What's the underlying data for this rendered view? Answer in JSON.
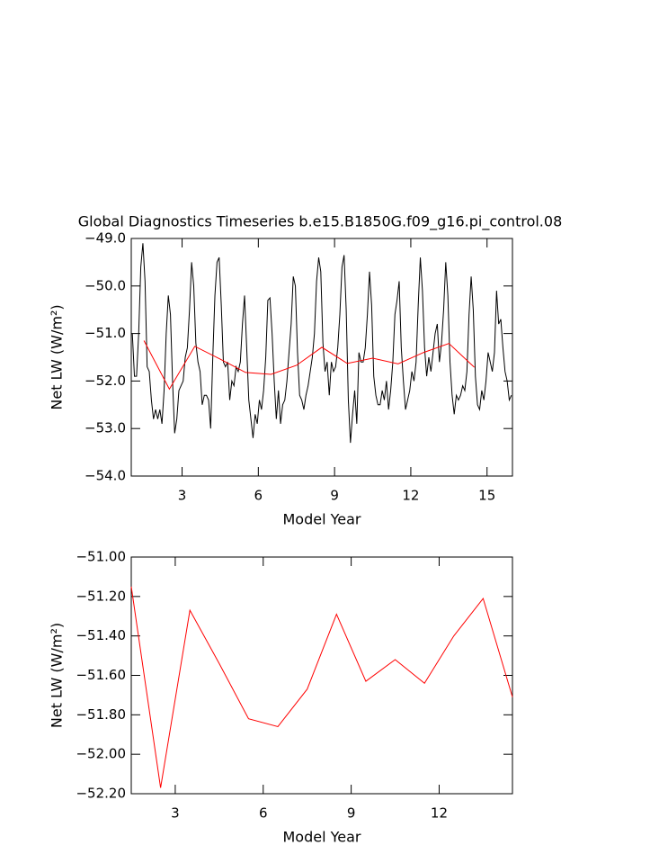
{
  "chart_data": [
    {
      "type": "line",
      "title": "Global Diagnostics Timeseries b.e15.B1850G.f09_g16.pi_control.08",
      "x_label": "Model Year",
      "y_label": "Net LW (W/m²)",
      "xlim": [
        1,
        16
      ],
      "xticks": [
        3,
        6,
        9,
        12,
        15
      ],
      "ylim": [
        -54,
        -49
      ],
      "yticks": [
        {
          "value": -54,
          "label": "−54.0"
        },
        {
          "value": -53,
          "label": "−53.0"
        },
        {
          "value": -52,
          "label": "−52.0"
        },
        {
          "value": -51,
          "label": "−51.0"
        },
        {
          "value": -50,
          "label": "−50.0"
        },
        {
          "value": -49,
          "label": "−49.0"
        }
      ],
      "series": [
        {
          "color": "#000000",
          "x": [
            1.042,
            1.125,
            1.208,
            1.292,
            1.375,
            1.458,
            1.542,
            1.625,
            1.708,
            1.792,
            1.875,
            1.958,
            2.042,
            2.125,
            2.208,
            2.292,
            2.375,
            2.458,
            2.542,
            2.625,
            2.708,
            2.792,
            2.875,
            2.958,
            3.042,
            3.125,
            3.208,
            3.292,
            3.375,
            3.458,
            3.542,
            3.625,
            3.708,
            3.792,
            3.875,
            3.958,
            4.042,
            4.125,
            4.208,
            4.292,
            4.375,
            4.458,
            4.542,
            4.625,
            4.708,
            4.792,
            4.875,
            4.958,
            5.042,
            5.125,
            5.208,
            5.292,
            5.375,
            5.458,
            5.542,
            5.625,
            5.708,
            5.792,
            5.875,
            5.958,
            6.042,
            6.125,
            6.208,
            6.292,
            6.375,
            6.458,
            6.542,
            6.625,
            6.708,
            6.792,
            6.875,
            6.958,
            7.042,
            7.125,
            7.208,
            7.292,
            7.375,
            7.458,
            7.542,
            7.625,
            7.708,
            7.792,
            7.875,
            7.958,
            8.042,
            8.125,
            8.208,
            8.292,
            8.375,
            8.458,
            8.542,
            8.625,
            8.708,
            8.792,
            8.875,
            8.958,
            9.042,
            9.125,
            9.208,
            9.292,
            9.375,
            9.458,
            9.542,
            9.625,
            9.708,
            9.792,
            9.875,
            9.958,
            10.042,
            10.125,
            10.208,
            10.292,
            10.375,
            10.458,
            10.542,
            10.625,
            10.708,
            10.792,
            10.875,
            10.958,
            11.042,
            11.125,
            11.208,
            11.292,
            11.375,
            11.458,
            11.542,
            11.625,
            11.708,
            11.792,
            11.875,
            11.958,
            12.042,
            12.125,
            12.208,
            12.292,
            12.375,
            12.458,
            12.542,
            12.625,
            12.708,
            12.792,
            12.875,
            12.958,
            13.042,
            13.125,
            13.208,
            13.292,
            13.375,
            13.458,
            13.542,
            13.625,
            13.708,
            13.792,
            13.875,
            13.958,
            14.042,
            14.125,
            14.208,
            14.292,
            14.375,
            14.458,
            14.542,
            14.625,
            14.708,
            14.792,
            14.875,
            14.958,
            15.042,
            15.125,
            15.208,
            15.292,
            15.375,
            15.458,
            15.542,
            15.625,
            15.708,
            15.792,
            15.875,
            15.958
          ],
          "values": [
            -51.0,
            -51.9,
            -51.9,
            -51.0,
            -49.6,
            -49.1,
            -49.9,
            -51.7,
            -51.8,
            -52.4,
            -52.8,
            -52.6,
            -52.8,
            -52.6,
            -52.9,
            -52.2,
            -51.0,
            -50.2,
            -50.6,
            -52.0,
            -53.1,
            -52.8,
            -52.2,
            -52.1,
            -52.0,
            -51.5,
            -51.3,
            -50.5,
            -49.5,
            -50.0,
            -51.2,
            -51.6,
            -51.8,
            -52.5,
            -52.3,
            -52.3,
            -52.4,
            -53.0,
            -51.5,
            -50.2,
            -49.5,
            -49.4,
            -50.4,
            -51.6,
            -51.7,
            -51.6,
            -52.4,
            -52.0,
            -52.1,
            -51.7,
            -51.8,
            -51.6,
            -50.8,
            -50.2,
            -51.3,
            -52.4,
            -52.8,
            -53.2,
            -52.7,
            -52.9,
            -52.4,
            -52.6,
            -52.2,
            -51.5,
            -50.3,
            -50.25,
            -51.0,
            -52.0,
            -52.8,
            -52.2,
            -52.9,
            -52.5,
            -52.4,
            -52.0,
            -51.4,
            -50.8,
            -49.8,
            -50.0,
            -51.4,
            -52.3,
            -52.4,
            -52.6,
            -52.3,
            -52.1,
            -51.8,
            -51.5,
            -51.0,
            -49.9,
            -49.4,
            -49.7,
            -51.2,
            -51.8,
            -51.6,
            -52.3,
            -51.6,
            -51.8,
            -51.7,
            -51.3,
            -50.6,
            -49.6,
            -49.35,
            -50.5,
            -52.4,
            -53.3,
            -52.7,
            -52.2,
            -52.9,
            -51.4,
            -51.6,
            -51.6,
            -51.3,
            -50.6,
            -49.7,
            -50.4,
            -51.9,
            -52.3,
            -52.5,
            -52.5,
            -52.2,
            -52.4,
            -52.0,
            -52.6,
            -52.2,
            -51.6,
            -50.6,
            -50.3,
            -49.9,
            -51.3,
            -52.0,
            -52.6,
            -52.4,
            -52.2,
            -51.8,
            -52.0,
            -51.6,
            -50.4,
            -49.4,
            -50.1,
            -51.3,
            -51.9,
            -51.5,
            -51.8,
            -51.4,
            -51.0,
            -50.8,
            -51.6,
            -51.2,
            -50.5,
            -49.5,
            -50.2,
            -51.6,
            -52.3,
            -52.7,
            -52.3,
            -52.4,
            -52.3,
            -52.1,
            -52.2,
            -51.8,
            -50.6,
            -49.8,
            -50.5,
            -51.9,
            -52.5,
            -52.6,
            -52.2,
            -52.4,
            -52.0,
            -51.4,
            -51.6,
            -51.8,
            -51.4,
            -50.1,
            -50.8,
            -50.7,
            -51.3,
            -51.8,
            -52.0,
            -52.4,
            -52.3
          ]
        },
        {
          "color": "#ff0000",
          "x": [
            1.5,
            2.5,
            3.5,
            4.5,
            5.5,
            6.5,
            7.5,
            8.5,
            9.5,
            10.5,
            11.5,
            12.5,
            13.5,
            14.5
          ],
          "values": [
            -51.15,
            -52.17,
            -51.27,
            -51.54,
            -51.82,
            -51.86,
            -51.67,
            -51.29,
            -51.63,
            -51.52,
            -51.64,
            -51.4,
            -51.21,
            -51.71
          ]
        }
      ]
    },
    {
      "type": "line",
      "x_label": "Model Year",
      "y_label": "Net LW (W/m²)",
      "xlim": [
        1.5,
        14.5
      ],
      "xticks": [
        3,
        6,
        9,
        12
      ],
      "ylim": [
        -52.2,
        -51.0
      ],
      "yticks": [
        {
          "value": -52.2,
          "label": "−52.20"
        },
        {
          "value": -52.0,
          "label": "−52.00"
        },
        {
          "value": -51.8,
          "label": "−51.80"
        },
        {
          "value": -51.6,
          "label": "−51.60"
        },
        {
          "value": -51.4,
          "label": "−51.40"
        },
        {
          "value": -51.2,
          "label": "−51.20"
        },
        {
          "value": -51.0,
          "label": "−51.00"
        }
      ],
      "series": [
        {
          "color": "#ff0000",
          "x": [
            1.5,
            2.5,
            3.5,
            4.5,
            5.5,
            6.5,
            7.5,
            8.5,
            9.5,
            10.5,
            11.5,
            12.5,
            13.5,
            14.5
          ],
          "values": [
            -51.15,
            -52.17,
            -51.27,
            -51.54,
            -51.82,
            -51.86,
            -51.67,
            -51.29,
            -51.63,
            -51.52,
            -51.64,
            -51.4,
            -51.21,
            -51.71
          ]
        }
      ]
    }
  ]
}
